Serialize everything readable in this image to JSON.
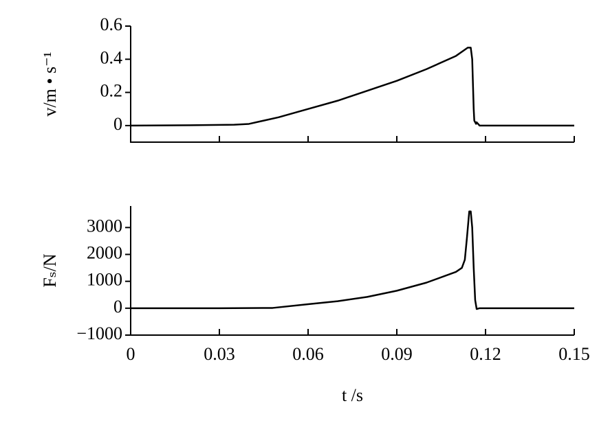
{
  "chart_data": [
    {
      "type": "line",
      "ylabel": "v/m • s⁻¹",
      "xlim": [
        0,
        0.15
      ],
      "xticks": [
        0,
        0.03,
        0.06,
        0.09,
        0.12,
        0.15
      ],
      "ylim": [
        -0.1,
        0.6
      ],
      "yticks": [
        0,
        0.2,
        0.4,
        0.6
      ],
      "series": [
        {
          "color": "#000000",
          "x": [
            0,
            0.02,
            0.035,
            0.04,
            0.05,
            0.06,
            0.07,
            0.08,
            0.09,
            0.1,
            0.11,
            0.114,
            0.115,
            0.1155,
            0.116,
            0.1162,
            0.1168,
            0.117,
            0.118,
            0.15
          ],
          "values": [
            0,
            0.002,
            0.005,
            0.01,
            0.05,
            0.1,
            0.15,
            0.21,
            0.27,
            0.34,
            0.42,
            0.47,
            0.47,
            0.4,
            0.1,
            0.03,
            0.01,
            0.02,
            0,
            0
          ]
        }
      ]
    },
    {
      "type": "line",
      "ylabel": "Fₛ/N",
      "xlabel": "t /s",
      "xlim": [
        0,
        0.15
      ],
      "xticks": [
        0,
        0.03,
        0.06,
        0.09,
        0.12,
        0.15
      ],
      "ylim": [
        -1000,
        3800
      ],
      "yticks": [
        {
          "value": -1000,
          "label": "−1000"
        },
        0,
        1000,
        2000,
        3000
      ],
      "series": [
        {
          "color": "#000000",
          "x": [
            0,
            0.03,
            0.048,
            0.06,
            0.07,
            0.08,
            0.09,
            0.1,
            0.11,
            0.112,
            0.113,
            0.1137,
            0.1145,
            0.115,
            0.1155,
            0.116,
            0.1165,
            0.117,
            0.118,
            0.15
          ],
          "values": [
            0,
            0,
            10,
            150,
            260,
            420,
            650,
            950,
            1350,
            1500,
            1800,
            2600,
            3600,
            3600,
            3000,
            1500,
            300,
            -30,
            0,
            0
          ]
        }
      ]
    }
  ]
}
